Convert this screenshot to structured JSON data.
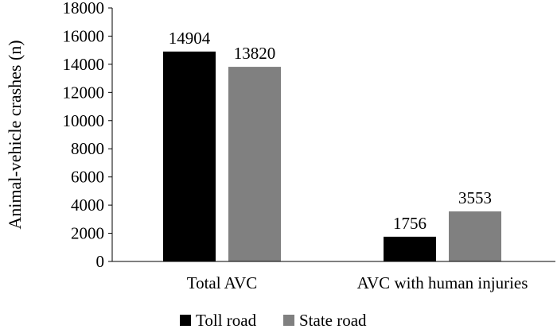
{
  "chart_data": {
    "type": "bar",
    "categories": [
      "Total AVC",
      "AVC with human injuries"
    ],
    "series": [
      {
        "name": "Toll road",
        "values": [
          14904,
          1756
        ],
        "color": "#000000"
      },
      {
        "name": "State road",
        "values": [
          13820,
          3553
        ],
        "color": "#808080"
      }
    ],
    "ylabel": "Animal-vehicle crashes (n)",
    "ylim": [
      0,
      18000
    ],
    "yticks": [
      0,
      2000,
      4000,
      6000,
      8000,
      10000,
      12000,
      14000,
      16000,
      18000
    ],
    "grid": false,
    "legend_position": "bottom"
  }
}
